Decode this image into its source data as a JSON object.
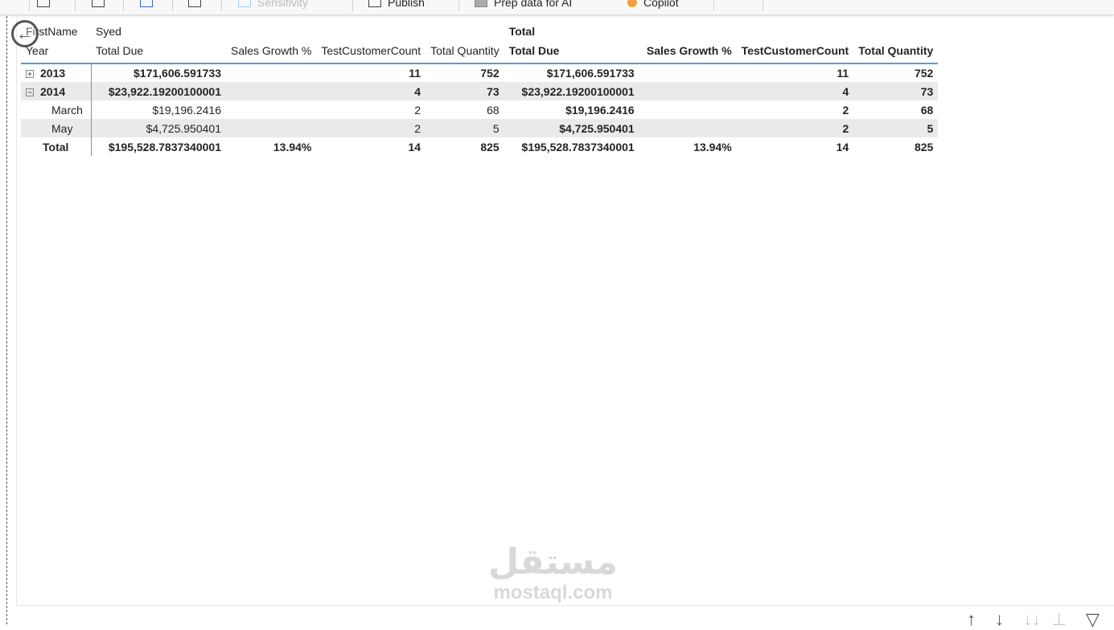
{
  "toolbar": {
    "items": [
      {
        "label": "",
        "icon": "new-table-icon"
      },
      {
        "label": "",
        "icon": "refresh-icon"
      },
      {
        "label": "",
        "icon": "new-visual-icon"
      },
      {
        "label": "",
        "icon": "calendar-icon"
      },
      {
        "label": "Sensitivity",
        "icon": "sensitivity-icon"
      },
      {
        "label": "Publish",
        "icon": "publish-icon"
      },
      {
        "label": "Prep data for AI",
        "icon": "prep-data-icon"
      },
      {
        "label": "Copilot",
        "icon": "copilot-icon"
      }
    ]
  },
  "matrix": {
    "row_header_top": "FirstName",
    "row_header": "Year",
    "group1": "Syed",
    "group2": "Total",
    "columns": [
      "Total Due",
      "Sales Growth %",
      "TestCustomerCount",
      "Total Quantity"
    ],
    "rows": [
      {
        "label": "2013",
        "expand": "+",
        "level": 0,
        "g1": [
          "$171,606.591733",
          "",
          "11",
          "752"
        ],
        "g2": [
          "$171,606.591733",
          "",
          "11",
          "752"
        ]
      },
      {
        "label": "2014",
        "expand": "−",
        "level": 0,
        "g1": [
          "$23,922.19200100001",
          "",
          "4",
          "73"
        ],
        "g2": [
          "$23,922.19200100001",
          "",
          "4",
          "73"
        ]
      },
      {
        "label": "March",
        "level": 1,
        "g1": [
          "$19,196.2416",
          "",
          "2",
          "68"
        ],
        "g2": [
          "$19,196.2416",
          "",
          "2",
          "68"
        ]
      },
      {
        "label": "May",
        "level": 1,
        "g1": [
          "$4,725.950401",
          "",
          "2",
          "5"
        ],
        "g2": [
          "$4,725.950401",
          "",
          "2",
          "5"
        ]
      },
      {
        "label": "Total",
        "level": 0,
        "g1": [
          "$195,528.7837340001",
          "13.94%",
          "14",
          "825"
        ],
        "g2": [
          "$195,528.7837340001",
          "13.94%",
          "14",
          "825"
        ]
      }
    ]
  },
  "watermark": {
    "arabic": "مستقل",
    "latin": "mostaql.com"
  },
  "footer_icons": [
    "sort-ascending-icon",
    "sort-descending-icon",
    "expand-all-icon",
    "drill-down-icon",
    "filter-icon"
  ]
}
